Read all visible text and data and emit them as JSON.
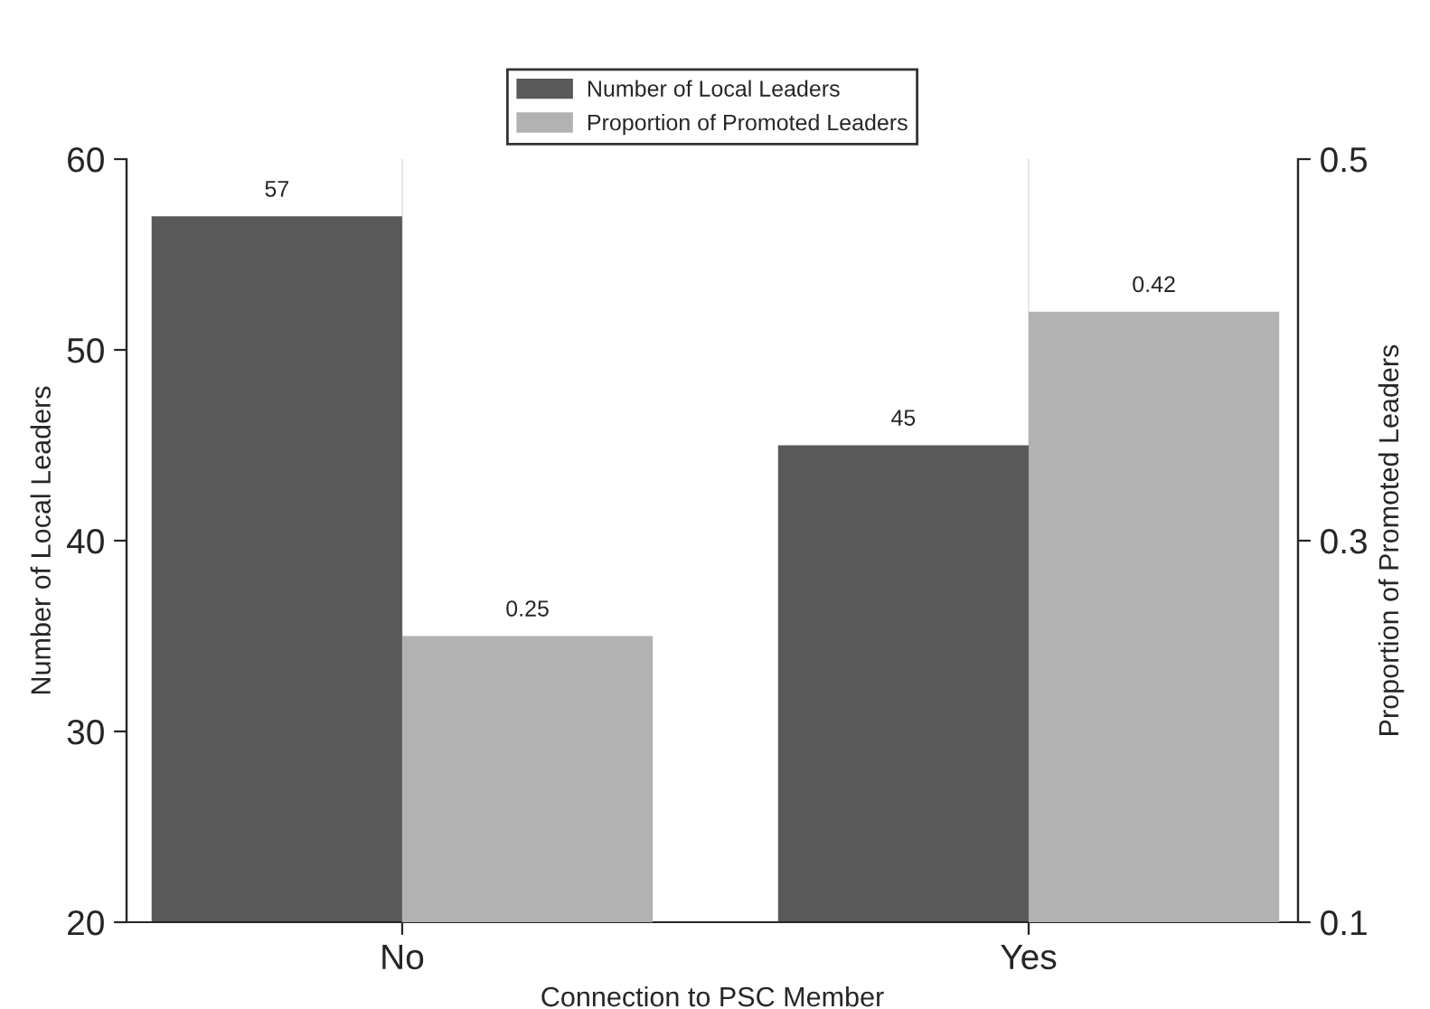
{
  "chart_data": {
    "type": "bar",
    "xlabel": "Connection to PSC Member",
    "ylabel": "Number of Local Leaders",
    "y2label": "Proportion of Promoted Leaders",
    "categories": [
      "No",
      "Yes"
    ],
    "series": [
      {
        "name": "Number of Local Leaders",
        "color": "#595959",
        "values": [
          57,
          45
        ]
      },
      {
        "name": "Proportion of Promoted Leaders",
        "color": "#b2b2b2",
        "values": [
          0.25,
          0.42
        ],
        "axis": "y2"
      }
    ],
    "ylim": [
      20,
      60
    ],
    "yticks": [
      20,
      30,
      40,
      50,
      60
    ],
    "y2lim": [
      0.1,
      0.5
    ],
    "y2ticks": [
      0.1,
      0.3,
      0.5
    ],
    "data_labels": true,
    "grid": "x",
    "legend": "top"
  }
}
